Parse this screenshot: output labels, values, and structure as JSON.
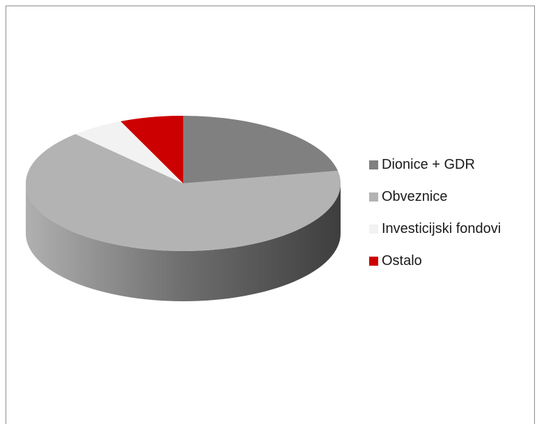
{
  "chart_data": {
    "type": "pie",
    "title": "",
    "three_d": true,
    "legend_position": "right",
    "categories": [
      "Dionice + GDR",
      "Obveznice",
      "Investicijski fondovi",
      "Ostalo"
    ],
    "values": [
      22,
      66,
      5.5,
      6.5
    ],
    "colors": [
      "#808080",
      "#b3b3b3",
      "#f2f2f2",
      "#cc0000"
    ],
    "side_colors": [
      "#5a5a5a",
      "#8a8a8a",
      "#c8c8c8",
      "#8a0000"
    ]
  }
}
